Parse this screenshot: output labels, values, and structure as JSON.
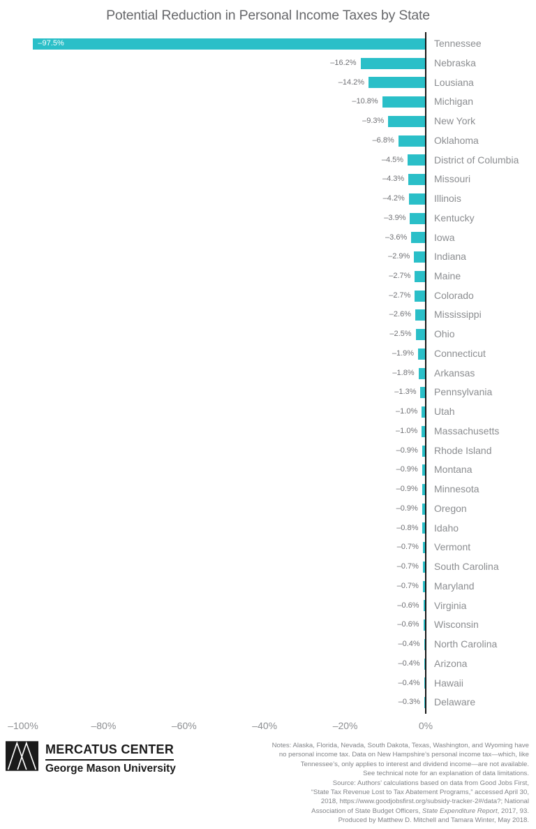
{
  "title": "Potential Reduction in Personal Income Taxes by State",
  "chart_data": {
    "type": "bar",
    "orientation": "horizontal",
    "title": "Potential Reduction in Personal Income Taxes by State",
    "xlabel": "",
    "ylabel": "",
    "xlim": [
      -104,
      0
    ],
    "grid": false,
    "legend": "none",
    "bar_color": "#2abfc8",
    "axis_line_color": "#151515",
    "categories": [
      "Tennessee",
      "Nebraska",
      "Lousiana",
      "Michigan",
      "New York",
      "Oklahoma",
      "District of Columbia",
      "Missouri",
      "Illinois",
      "Kentucky",
      "Iowa",
      "Indiana",
      "Maine",
      "Colorado",
      "Mississippi",
      "Ohio",
      "Connecticut",
      "Arkansas",
      "Pennsylvania",
      "Utah",
      "Massachusetts",
      "Rhode Island",
      "Montana",
      "Minnesota",
      "Oregon",
      "Idaho",
      "Vermont",
      "South Carolina",
      "Maryland",
      "Virginia",
      "Wisconsin",
      "North Carolina",
      "Arizona",
      "Hawaii",
      "Delaware"
    ],
    "values": [
      -97.5,
      -16.2,
      -14.2,
      -10.8,
      -9.3,
      -6.8,
      -4.5,
      -4.3,
      -4.2,
      -3.9,
      -3.6,
      -2.9,
      -2.7,
      -2.7,
      -2.6,
      -2.5,
      -1.9,
      -1.8,
      -1.3,
      -1.0,
      -1.0,
      -0.9,
      -0.9,
      -0.9,
      -0.9,
      -0.8,
      -0.7,
      -0.7,
      -0.7,
      -0.6,
      -0.6,
      -0.4,
      -0.4,
      -0.4,
      -0.3
    ],
    "value_labels": [
      "–97.5%",
      "–16.2%",
      "–14.2%",
      "–10.8%",
      "–9.3%",
      "–6.8%",
      "–4.5%",
      "–4.3%",
      "–4.2%",
      "–3.9%",
      "–3.6%",
      "–2.9%",
      "–2.7%",
      "–2.7%",
      "–2.6%",
      "–2.5%",
      "–1.9%",
      "–1.8%",
      "–1.3%",
      "–1.0%",
      "–1.0%",
      "–0.9%",
      "–0.9%",
      "–0.9%",
      "–0.9%",
      "–0.8%",
      "–0.7%",
      "–0.7%",
      "–0.7%",
      "–0.6%",
      "–0.6%",
      "–0.4%",
      "–0.4%",
      "–0.4%",
      "–0.3%"
    ],
    "x_ticks": {
      "labels": [
        "–100%",
        "–80%",
        "–60%",
        "–40%",
        "–20%",
        "0%"
      ],
      "values": [
        -100,
        -80,
        -60,
        -40,
        -20,
        0
      ]
    }
  },
  "footer": {
    "logo": {
      "mark": "mercatus-triangles-logo",
      "line1": "MERCATUS CENTER",
      "line2": "George Mason University"
    },
    "notes_lines": [
      [
        {
          "t": "Notes: Alaska, Florida, Nevada, South Dakota, Texas, Washington, and Wyoming have"
        }
      ],
      [
        {
          "t": "no personal income tax. Data on New Hampshire’s personal income tax—which, like"
        }
      ],
      [
        {
          "t": "Tennessee’s, only applies to interest and dividend income—are not available."
        }
      ],
      [
        {
          "t": "See technical note for an explanation of data limitations."
        }
      ],
      [
        {
          "t": "Source: Authors’ calculations based on data from Good Jobs First,"
        }
      ],
      [
        {
          "t": "“State Tax Revenue Lost to Tax Abatement Programs,” accessed April 30,"
        }
      ],
      [
        {
          "t": "2018, https://www.goodjobsfirst.org/subsidy-tracker-2#/data?; National"
        }
      ],
      [
        {
          "t": "Association of State Budget Officers, "
        },
        {
          "t": "State Expenditure Report",
          "i": true
        },
        {
          "t": ", 2017, 93."
        }
      ],
      [
        {
          "t": "Produced by Matthew D. Mitchell and Tamara Winter, May 2018."
        }
      ]
    ]
  }
}
